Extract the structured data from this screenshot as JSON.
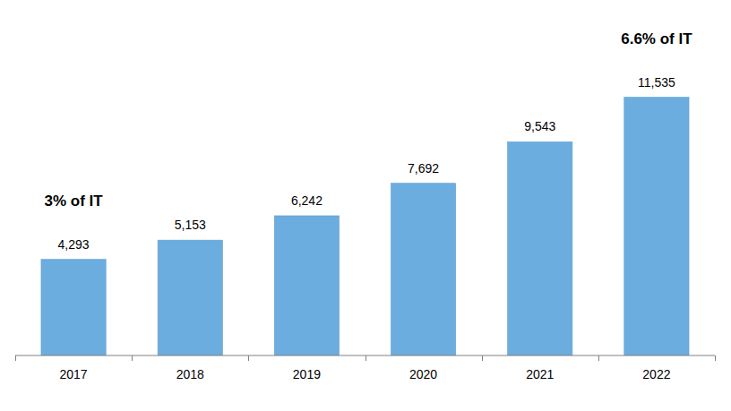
{
  "chart_data": {
    "type": "bar",
    "categories": [
      "2017",
      "2018",
      "2019",
      "2020",
      "2021",
      "2022"
    ],
    "values": [
      4293,
      5153,
      6242,
      7692,
      9543,
      11535
    ],
    "value_labels": [
      "4,293",
      "5,153",
      "6,242",
      "7,692",
      "9,543",
      "11,535"
    ],
    "color": "#6caddf",
    "ylim": [
      0,
      15000
    ],
    "data_labels": true,
    "tick_labels": "x",
    "grid": false,
    "annotations": [
      {
        "text": "3% of IT",
        "category": "2017"
      },
      {
        "text": "6.6% of IT",
        "category": "2022"
      }
    ]
  }
}
